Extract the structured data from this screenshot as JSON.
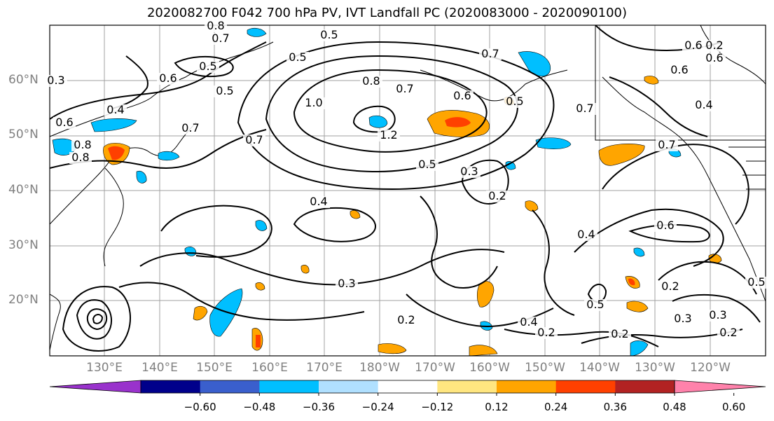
{
  "title": "2020082700 F042 700 hPa PV, IVT Landfall PC (2020083000 - 2020090100)",
  "lat_labels": [
    "60°N",
    "50°N",
    "40°N",
    "30°N",
    "20°N"
  ],
  "lon_labels": [
    "130°E",
    "140°E",
    "150°E",
    "160°E",
    "170°E",
    "180°W",
    "170°W",
    "160°W",
    "150°W",
    "140°W",
    "130°W",
    "120°W"
  ],
  "contour_labels": [
    "0.8",
    "0.7",
    "0.6",
    "0.5",
    "0.5",
    "0.5",
    "0.7",
    "0.7",
    "0.3",
    "0.4",
    "0.6",
    "0.8",
    "0.8",
    "0.7",
    "0.5",
    "0.6",
    "1.0",
    "1.2",
    "0.8",
    "0.7",
    "0.6",
    "0.5",
    "0.7",
    "0.4",
    "0.6",
    "0.7",
    "0.5",
    "0.3",
    "0.2",
    "0.4",
    "0.6",
    "0.4",
    "0.3",
    "0.2",
    "0.5",
    "0.4",
    "0.2",
    "0.2",
    "0.3",
    "0.2",
    "0.2",
    "0.6",
    "0.5",
    "0.3",
    "0.2"
  ],
  "colorbar": {
    "ticks": [
      "−0.60",
      "−0.48",
      "−0.36",
      "−0.24",
      "−0.12",
      "0.12",
      "0.24",
      "0.36",
      "0.48",
      "0.60"
    ],
    "colors": [
      "#9932cc",
      "#00008b",
      "#3a5fcd",
      "#00bfff",
      "#b0e0ff",
      "#ffffff",
      "#ffe680",
      "#ffa500",
      "#ff4000",
      "#b22222",
      "#ff82ab"
    ]
  }
}
